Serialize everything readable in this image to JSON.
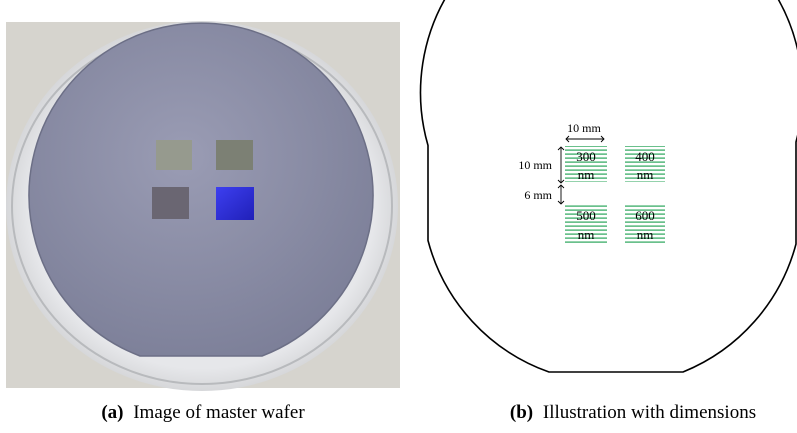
{
  "figure": {
    "panels": [
      {
        "label": "(a)",
        "caption": "Image of master wafer"
      },
      {
        "label": "(b)",
        "caption": "Illustration with dimensions",
        "dimensions": {
          "width": "10 mm",
          "height": "10 mm",
          "gap": "6 mm"
        },
        "squares": [
          {
            "value": "300",
            "unit": "nm"
          },
          {
            "value": "400",
            "unit": "nm"
          },
          {
            "value": "500",
            "unit": "nm"
          },
          {
            "value": "600",
            "unit": "nm"
          }
        ]
      }
    ]
  }
}
